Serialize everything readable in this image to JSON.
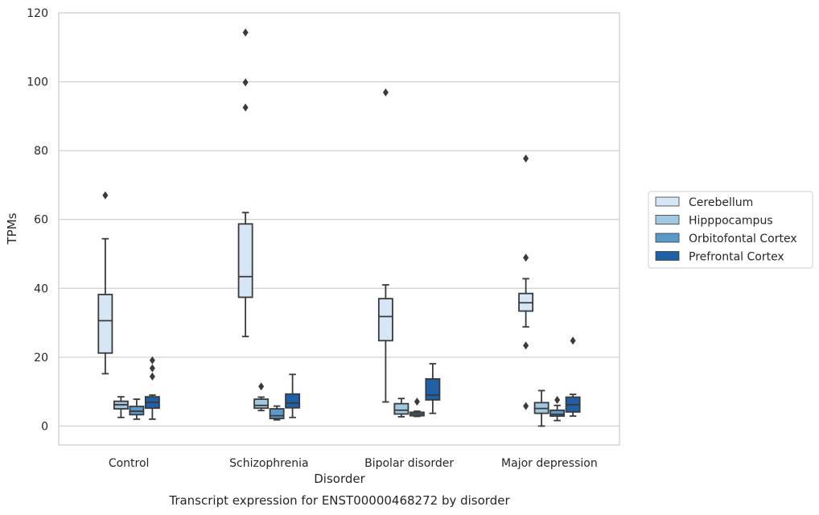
{
  "chart_data": {
    "type": "box",
    "title": "",
    "xlabel": "Disorder",
    "ylabel": "TPMs",
    "caption": "Transcript expression for ENST00000468272 by disorder",
    "ylim": [
      -5.5,
      120
    ],
    "yticks": [
      0,
      20,
      40,
      60,
      80,
      100,
      120
    ],
    "grid": "horizontal",
    "legend_position": "right",
    "categories": [
      "Control",
      "Schizophrenia",
      "Bipolar disorder",
      "Major depression"
    ],
    "series": [
      {
        "name": "Cerebellum",
        "color": "#d6e6f4",
        "boxes": [
          {
            "whislo": 15.2,
            "q1": 21.2,
            "med": 30.6,
            "q3": 38.2,
            "whishi": 54.4,
            "fliers": [
              67.0
            ]
          },
          {
            "whislo": 26.0,
            "q1": 37.4,
            "med": 43.4,
            "q3": 58.7,
            "whishi": 62.0,
            "fliers": [
              92.5,
              99.8,
              114.3
            ]
          },
          {
            "whislo": 7.0,
            "q1": 24.8,
            "med": 31.8,
            "q3": 37.0,
            "whishi": 41.0,
            "fliers": [
              96.9
            ]
          },
          {
            "whislo": 28.8,
            "q1": 33.4,
            "med": 35.8,
            "q3": 38.5,
            "whishi": 42.8,
            "fliers": [
              5.8,
              23.4,
              48.9,
              77.7
            ]
          }
        ]
      },
      {
        "name": "Hipppocampus",
        "color": "#a0c9e1",
        "boxes": [
          {
            "whislo": 2.5,
            "q1": 5.0,
            "med": 6.2,
            "q3": 7.2,
            "whishi": 8.5,
            "fliers": []
          },
          {
            "whislo": 4.5,
            "q1": 5.2,
            "med": 6.0,
            "q3": 7.8,
            "whishi": 8.4,
            "fliers": [
              11.5
            ]
          },
          {
            "whislo": 2.7,
            "q1": 3.5,
            "med": 4.6,
            "q3": 6.5,
            "whishi": 8.0,
            "fliers": []
          },
          {
            "whislo": 0.0,
            "q1": 3.7,
            "med": 5.1,
            "q3": 6.8,
            "whishi": 10.3,
            "fliers": []
          }
        ]
      },
      {
        "name": "Orbitofontal Cortex",
        "color": "#5a9ac8",
        "boxes": [
          {
            "whislo": 2.0,
            "q1": 3.3,
            "med": 4.3,
            "q3": 5.7,
            "whishi": 7.8,
            "fliers": []
          },
          {
            "whislo": 1.8,
            "q1": 2.2,
            "med": 3.0,
            "q3": 5.0,
            "whishi": 5.8,
            "fliers": []
          },
          {
            "whislo": 2.8,
            "q1": 3.0,
            "med": 3.5,
            "q3": 4.0,
            "whishi": 4.3,
            "fliers": [
              7.1
            ]
          },
          {
            "whislo": 1.6,
            "q1": 2.9,
            "med": 3.4,
            "q3": 4.6,
            "whishi": 6.0,
            "fliers": [
              7.6
            ]
          }
        ]
      },
      {
        "name": "Prefrontal Cortex",
        "color": "#2060a7",
        "boxes": [
          {
            "whislo": 2.0,
            "q1": 5.2,
            "med": 6.9,
            "q3": 8.5,
            "whishi": 9.0,
            "fliers": [
              14.4,
              16.8,
              19.1
            ]
          },
          {
            "whislo": 2.5,
            "q1": 5.3,
            "med": 6.7,
            "q3": 9.3,
            "whishi": 15.0,
            "fliers": []
          },
          {
            "whislo": 3.7,
            "q1": 7.6,
            "med": 9.0,
            "q3": 13.7,
            "whishi": 18.1,
            "fliers": []
          },
          {
            "whislo": 2.9,
            "q1": 4.1,
            "med": 6.2,
            "q3": 8.4,
            "whishi": 9.2,
            "fliers": [
              24.8
            ]
          }
        ]
      }
    ]
  }
}
